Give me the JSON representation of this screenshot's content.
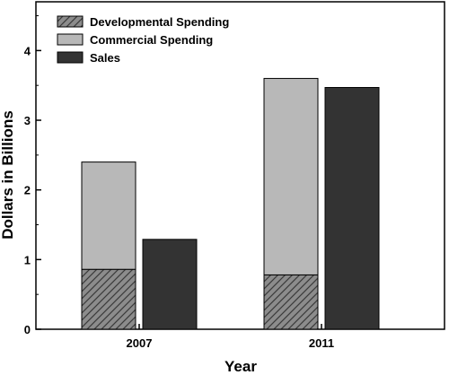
{
  "chart_data": {
    "type": "bar",
    "stacked_grouped": true,
    "categories": [
      "2007",
      "2011"
    ],
    "series": [
      {
        "name": "Developmental Spending",
        "values": [
          0.86,
          0.78
        ],
        "stack": "spending",
        "fill": "hatch"
      },
      {
        "name": "Commercial Spending",
        "values": [
          1.54,
          2.82
        ],
        "stack": "spending",
        "fill": "#b8b8b8"
      },
      {
        "name": "Sales",
        "values": [
          1.29,
          3.47
        ],
        "stack": "sales",
        "fill": "#333333"
      }
    ],
    "xlabel": "Year",
    "ylabel": "Dollars in Billions",
    "ylim": [
      0,
      4.7
    ],
    "yticks": [
      0,
      1,
      2,
      3,
      4
    ],
    "grid": false,
    "legend": "top-left",
    "colors": {
      "hatch_bg": "#8c8c8c",
      "hatch_line": "#3a3a3a",
      "commercial": "#b8b8b8",
      "sales": "#333333",
      "axis": "#000000"
    }
  }
}
